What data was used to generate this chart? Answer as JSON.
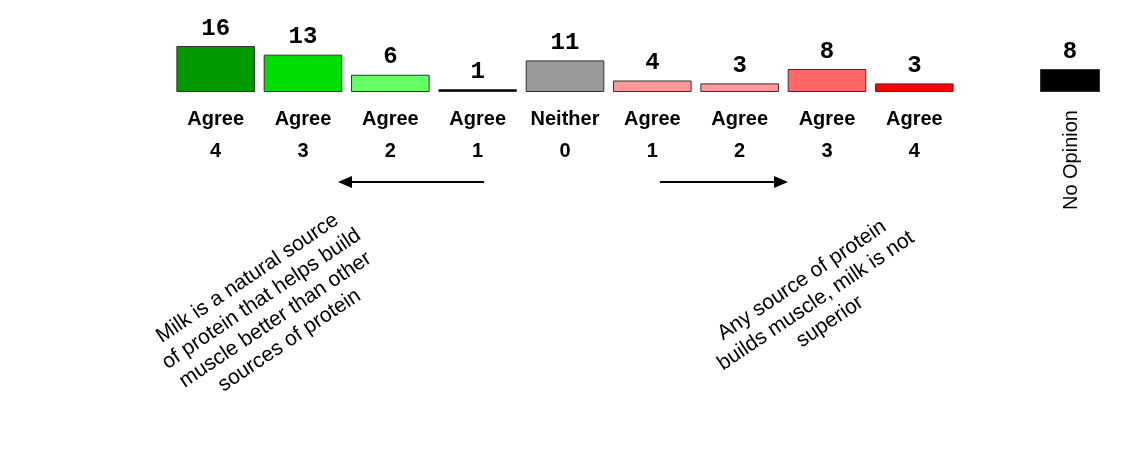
{
  "chart_data": [
    {
      "type": "bar",
      "categories": [
        "Agree\n4",
        "Agree\n3",
        "Agree\n2",
        "Agree\n1",
        "Neither\n0",
        "Agree\n1",
        "Agree\n2",
        "Agree\n3",
        "Agree\n4"
      ],
      "values": [
        16,
        13,
        6,
        1,
        11,
        4,
        3,
        8,
        3
      ],
      "colors": [
        "#009900",
        "#00dd00",
        "#66ff66",
        "#000000",
        "#999999",
        "#ff9999",
        "#ff9999",
        "#ff6666",
        "#ff0000"
      ],
      "data_labels": true,
      "annotations": [
        "Milk is a natural source of protein that helps build muscle better than other sources of protein",
        "Any source of protein builds muscle, milk is not superior"
      ]
    },
    {
      "type": "bar",
      "categories": [
        "No Opinion"
      ],
      "values": [
        8
      ],
      "colors": [
        "#000000"
      ],
      "data_labels": true
    }
  ]
}
